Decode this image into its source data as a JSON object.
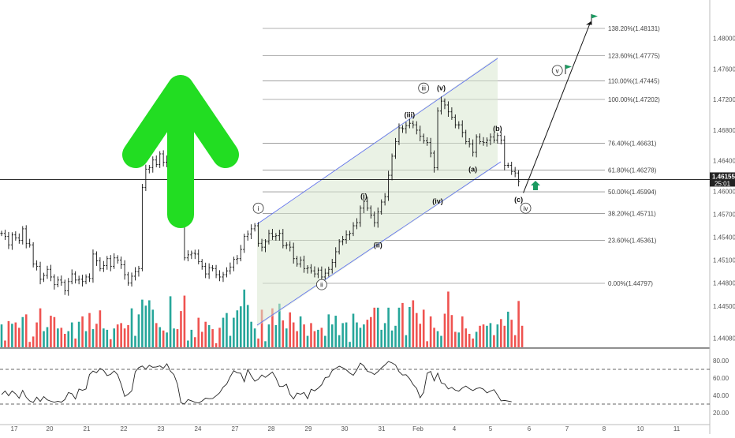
{
  "chart_data": {
    "type": "candlestick",
    "x_tick_labels": [
      "17",
      "20",
      "21",
      "22",
      "23",
      "24",
      "27",
      "28",
      "29",
      "30",
      "31",
      "Feb",
      "4",
      "5",
      "6",
      "7",
      "8",
      "10",
      "11",
      "12"
    ],
    "price_axis_ticks": [
      "1.48000",
      "1.47600",
      "1.47200",
      "1.46800",
      "1.46400",
      "1.46000",
      "1.45700",
      "1.45400",
      "1.45100",
      "1.44800",
      "1.44500",
      "1.44080"
    ],
    "current_price": {
      "label": "1.46155",
      "countdown": "25:01",
      "value": 1.46155
    },
    "fib_levels": [
      {
        "label": "138.20%(1.48131)",
        "value": 1.48131
      },
      {
        "label": "123.60%(1.47775)",
        "value": 1.47775
      },
      {
        "label": "110.00%(1.47445)",
        "value": 1.47445
      },
      {
        "label": "100.00%(1.47202)",
        "value": 1.47202
      },
      {
        "label": "76.40%(1.46631)",
        "value": 1.46631
      },
      {
        "label": "61.80%(1.46278)",
        "value": 1.46278
      },
      {
        "label": "50.00%(1.45994)",
        "value": 1.45994
      },
      {
        "label": "38.20%(1.45711)",
        "value": 1.45711
      },
      {
        "label": "23.60%(1.45361)",
        "value": 1.45361
      },
      {
        "label": "0.00%(1.44797)",
        "value": 1.44797
      }
    ],
    "wave_labels": [
      {
        "text": "i",
        "circled": true,
        "bar": 73,
        "price": 1.4578
      },
      {
        "text": "ii",
        "circled": true,
        "bar": 91,
        "price": 1.4478
      },
      {
        "text": "iii",
        "circled": true,
        "bar": 120,
        "price": 1.4735
      },
      {
        "text": "v",
        "circled": true,
        "bar": 158,
        "price": 1.4758
      },
      {
        "text": "iv",
        "circled": true,
        "bar": 149,
        "price": 1.4578
      },
      {
        "text": "(i)",
        "circled": false,
        "bar": 103,
        "price": 1.4594
      },
      {
        "text": "(ii)",
        "circled": false,
        "bar": 107,
        "price": 1.453
      },
      {
        "text": "(iii)",
        "circled": false,
        "bar": 116,
        "price": 1.47
      },
      {
        "text": "(iv)",
        "circled": false,
        "bar": 124,
        "price": 1.4587
      },
      {
        "text": "(v)",
        "circled": false,
        "bar": 125,
        "price": 1.4735
      },
      {
        "text": "(a)",
        "circled": false,
        "bar": 134,
        "price": 1.4629
      },
      {
        "text": "(b)",
        "circled": false,
        "bar": 141,
        "price": 1.4682
      },
      {
        "text": "(c)",
        "circled": false,
        "bar": 147,
        "price": 1.4589
      }
    ],
    "price_series": [
      1.4545,
      1.4541,
      1.453,
      1.4543,
      1.4539,
      1.4536,
      1.4551,
      1.4532,
      1.453,
      1.4505,
      1.4502,
      1.4485,
      1.449,
      1.4498,
      1.4488,
      1.4478,
      1.4484,
      1.4481,
      1.447,
      1.4482,
      1.4492,
      1.4484,
      1.4485,
      1.4482,
      1.4488,
      1.4486,
      1.4518,
      1.4509,
      1.4499,
      1.4503,
      1.4512,
      1.4502,
      1.4513,
      1.451,
      1.4504,
      1.4491,
      1.448,
      1.4489,
      1.4495,
      1.4499,
      1.4605,
      1.4629,
      1.4631,
      1.4641,
      1.4635,
      1.4649,
      1.4638,
      1.4641,
      1.4654,
      1.4658,
      1.4657,
      1.463,
      1.4513,
      1.4517,
      1.4519,
      1.4518,
      1.4508,
      1.4502,
      1.4492,
      1.45,
      1.4499,
      1.4491,
      1.4488,
      1.4491,
      1.4496,
      1.4501,
      1.4511,
      1.4512,
      1.4524,
      1.4541,
      1.4544,
      1.4551,
      1.4555,
      1.4532,
      1.4527,
      1.4534,
      1.4545,
      1.4541,
      1.4542,
      1.4545,
      1.4529,
      1.453,
      1.4527,
      1.4512,
      1.4505,
      1.451,
      1.4499,
      1.45,
      1.4496,
      1.4492,
      1.4497,
      1.4488,
      1.4493,
      1.4498,
      1.4507,
      1.4521,
      1.4534,
      1.4537,
      1.4543,
      1.4545,
      1.4555,
      1.4559,
      1.4578,
      1.4587,
      1.4578,
      1.4569,
      1.4559,
      1.4573,
      1.4586,
      1.4593,
      1.4621,
      1.4646,
      1.4665,
      1.4683,
      1.4682,
      1.4686,
      1.4689,
      1.4687,
      1.468,
      1.4672,
      1.4666,
      1.4664,
      1.465,
      1.4631,
      1.4705,
      1.4718,
      1.4713,
      1.4704,
      1.4697,
      1.4687,
      1.4687,
      1.4677,
      1.4665,
      1.4662,
      1.4651,
      1.4671,
      1.4665,
      1.4664,
      1.4667,
      1.4671,
      1.4667,
      1.4673,
      1.4667,
      1.4634,
      1.4634,
      1.4626,
      1.4624,
      1.4613
    ],
    "volume_series": [
      0.34,
      0.1,
      0.39,
      0.35,
      0.37,
      0.29,
      0.45,
      0.49,
      0.08,
      0.16,
      0.37,
      0.58,
      0.24,
      0.3,
      0.47,
      0.45,
      0.28,
      0.29,
      0.2,
      0.24,
      0.37,
      0.13,
      0.38,
      0.46,
      0.24,
      0.51,
      0.27,
      0.35,
      0.55,
      0.28,
      0.26,
      0.12,
      0.28,
      0.34,
      0.36,
      0.28,
      0.33,
      0.58,
      0.17,
      0.49,
      0.71,
      0.62,
      0.7,
      0.56,
      0.36,
      0.3,
      0.25,
      0.22,
      0.76,
      0.28,
      0.27,
      0.54,
      0.77,
      0.1,
      0.26,
      0.15,
      0.44,
      0.23,
      0.38,
      0.33,
      0.27,
      0.06,
      0.29,
      0.44,
      0.51,
      0.17,
      0.44,
      0.55,
      0.61,
      0.86,
      0.63,
      0.38,
      0.28,
      0.13,
      0.56,
      0.09,
      0.34,
      0.58,
      0.33,
      0.65,
      0.4,
      0.28,
      0.52,
      0.37,
      0.24,
      0.46,
      0.34,
      0.17,
      0.36,
      0.24,
      0.26,
      0.29,
      0.17,
      0.49,
      0.34,
      0.47,
      0.18,
      0.36,
      0.37,
      0.08,
      0.5,
      0.37,
      0.29,
      0.34,
      0.41,
      0.45,
      0.59,
      0.59,
      0.26,
      0.36,
      0.59,
      0.25,
      0.32,
      0.59,
      0.66,
      0.18,
      0.6,
      0.7,
      0.51,
      0.35,
      0.56,
      0.09,
      0.46,
      0.29,
      0.24,
      0.17,
      0.5,
      0.83,
      0.48,
      0.23,
      0.22,
      0.46,
      0.28,
      0.2,
      0.13,
      0.23,
      0.32,
      0.34,
      0.32,
      0.36,
      0.18,
      0.34,
      0.42,
      0.32,
      0.53,
      0.41,
      0.18,
      0.69,
      0.32
    ],
    "rsi_series": [
      41.0,
      45.1,
      39.6,
      45.1,
      41.8,
      36.7,
      45.8,
      37.8,
      33.6,
      31.9,
      37.9,
      33.0,
      38.6,
      34.8,
      33.3,
      32.1,
      33.2,
      32.2,
      35.2,
      43.3,
      41.9,
      35.8,
      47.3,
      45.9,
      47.4,
      64.1,
      68.0,
      66.1,
      71.1,
      68.8,
      62.8,
      64.2,
      68.2,
      63.8,
      52.7,
      38.8,
      41.4,
      45.2,
      67.2,
      72.0,
      73.8,
      70.3,
      74.6,
      72.4,
      72.8,
      74.0,
      71.2,
      76.4,
      68.0,
      63.9,
      53.0,
      31.4,
      30.0,
      35.2,
      33.7,
      32.1,
      31.2,
      33.5,
      36.8,
      36.2,
      36.4,
      39.5,
      43.0,
      49.5,
      53.0,
      61.5,
      68.4,
      66.0,
      65.5,
      55.7,
      69.8,
      62.3,
      56.3,
      58.6,
      63.5,
      60.7,
      63.9,
      66.9,
      60.1,
      50.3,
      50.3,
      52.8,
      41.1,
      35.9,
      42.7,
      41.3,
      43.3,
      36.2,
      47.1,
      45.3,
      48.3,
      52.2,
      60.4,
      61.2,
      68.6,
      71.1,
      73.6,
      71.8,
      69.4,
      65.7,
      63.2,
      69.4,
      77.2,
      74.0,
      67.7,
      66.7,
      64.0,
      67.4,
      71.6,
      75.1,
      79.1,
      77.4,
      75.1,
      67.3,
      63.5,
      63.8,
      59.3,
      52.5,
      48.1,
      37.3,
      43.5,
      65.5,
      67.6,
      56.6,
      65.6,
      54.4,
      53.1,
      47.4,
      49.2,
      46.0,
      44.9,
      48.5,
      50.8,
      47.7,
      45.6,
      47.9,
      48.8,
      47.1,
      42.9,
      45.0,
      46.6,
      40.5,
      33.7,
      34.2,
      33.5,
      32.7
    ],
    "rsi_axis_ticks": [
      "80.00",
      "60.00",
      "40.00",
      "20.00"
    ],
    "rsi_levels": [
      70,
      30
    ],
    "colors": {
      "up_volume": "#26a69a",
      "down_volume": "#ef5350",
      "channel": "#5b6cf0",
      "arrow": "#22dd22",
      "fill": "#d9e8cf",
      "flag": "#1a9a60"
    }
  }
}
